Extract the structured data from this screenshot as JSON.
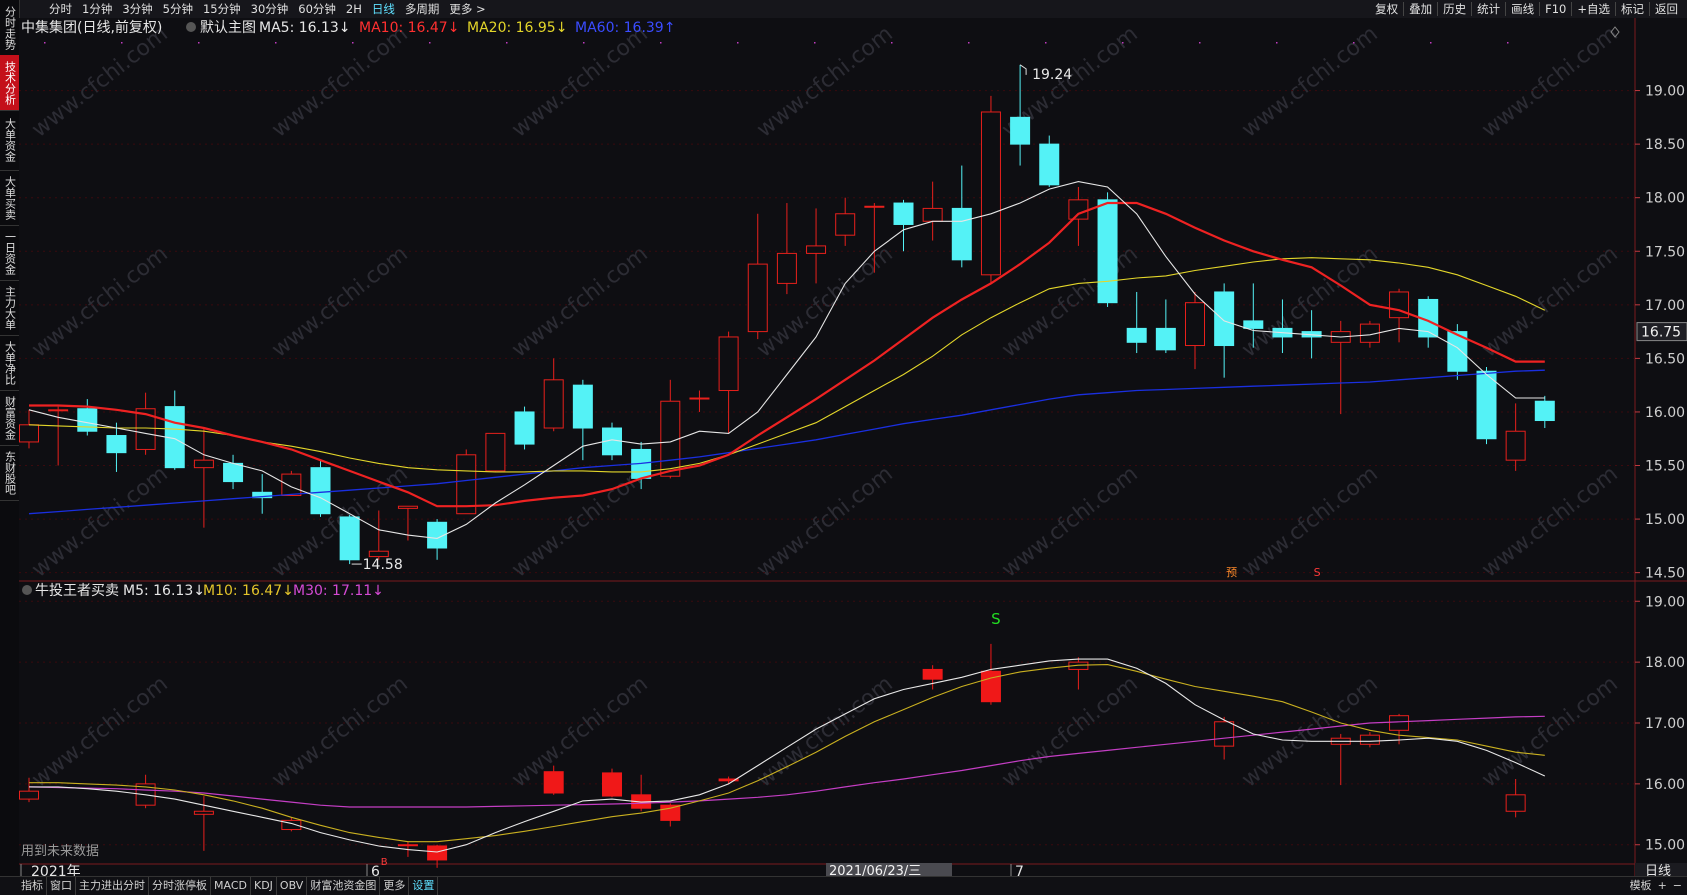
{
  "side_tabs": [
    "分时走势",
    "技术分析",
    "大单资金",
    "大单买卖",
    "一日资金",
    "主力大单",
    "大单净比",
    "财富资金",
    "东财股吧"
  ],
  "top_left_tabs": [
    "分时",
    "1分钟",
    "3分钟",
    "5分钟",
    "15分钟",
    "30分钟",
    "60分钟",
    "2H",
    "日线",
    "多周期",
    "更多 >"
  ],
  "top_right_tabs": [
    "复权",
    "叠加",
    "历史",
    "统计",
    "画线",
    "F10",
    "+自选",
    "标记",
    "返回"
  ],
  "bottom_tabs": [
    "指标",
    "窗口",
    "主力进出分时",
    "分时涨停板",
    "MACD",
    "KDJ",
    "OBV",
    "财富池资金图",
    "更多",
    "设置"
  ],
  "bottom_right": [
    "模板",
    "+",
    "−"
  ],
  "main_legend": {
    "title": "中集集团(日线,前复权)",
    "chart_name": "默认主图",
    "ma5": "MA5: 16.13↓",
    "ma10": "MA10: 16.47↓",
    "ma20": "MA20: 16.95↓",
    "ma60": "MA60: 16.39↑"
  },
  "sub_legend": {
    "title": "牛投王者买卖",
    "m5": "M5: 16.13↓",
    "m10": "M10: 16.47↓",
    "m30": "M30: 17.11↓"
  },
  "watermark": "www.cfchi.com",
  "future_note": "用到未来数据",
  "x_labels": [
    "2021年",
    "6",
    "7"
  ],
  "cursor_date": "2021/06/23/三",
  "period_label": "日线",
  "high_label": "19.24",
  "low_label": "14.58",
  "current_price": "16.75",
  "signal_labels": {
    "s_top": "S",
    "yu": "预",
    "s_small": "S",
    "b_small": "B"
  },
  "colors": {
    "up": "#e8201c",
    "down": "#54f2f6",
    "ma5": "#e6e6e6",
    "ma10": "#ee2222",
    "ma20": "#e3d62a",
    "ma60": "#1a2fe0",
    "m30": "#c43ec4",
    "bg": "#0e0e12",
    "grid": "#3a0a0e"
  },
  "chart_data": {
    "type": "candlestick",
    "main_yaxis": {
      "ticks": [
        "19.00",
        "18.50",
        "18.00",
        "17.50",
        "17.00",
        "16.50",
        "16.00",
        "15.50",
        "15.00",
        "14.50"
      ],
      "range": [
        14.45,
        19.5
      ]
    },
    "sub_yaxis": {
      "ticks": [
        "19.00",
        "18.00",
        "17.00",
        "16.00",
        "15.00"
      ],
      "range": [
        14.7,
        19.3
      ]
    },
    "candles": [
      {
        "o": 15.72,
        "c": 15.88,
        "h": 16.02,
        "l": 15.66
      },
      {
        "o": 16.02,
        "c": 16.02,
        "h": 16.05,
        "l": 15.5
      },
      {
        "o": 16.03,
        "c": 15.82,
        "h": 16.12,
        "l": 15.78
      },
      {
        "o": 15.78,
        "c": 15.62,
        "h": 15.9,
        "l": 15.44
      },
      {
        "o": 15.65,
        "c": 16.03,
        "h": 16.18,
        "l": 15.6
      },
      {
        "o": 16.05,
        "c": 15.48,
        "h": 16.2,
        "l": 15.46
      },
      {
        "o": 15.48,
        "c": 15.55,
        "h": 15.85,
        "l": 14.92
      },
      {
        "o": 15.52,
        "c": 15.35,
        "h": 15.6,
        "l": 15.28
      },
      {
        "o": 15.25,
        "c": 15.2,
        "h": 15.42,
        "l": 15.05
      },
      {
        "o": 15.22,
        "c": 15.42,
        "h": 15.45,
        "l": 15.22
      },
      {
        "o": 15.48,
        "c": 15.05,
        "h": 15.55,
        "l": 15.02
      },
      {
        "o": 15.02,
        "c": 14.62,
        "h": 15.04,
        "l": 14.58
      },
      {
        "o": 14.65,
        "c": 14.7,
        "h": 15.08,
        "l": 14.62
      },
      {
        "o": 15.1,
        "c": 15.12,
        "h": 15.12,
        "l": 14.8
      },
      {
        "o": 14.97,
        "c": 14.73,
        "h": 15.0,
        "l": 14.62
      },
      {
        "o": 15.05,
        "c": 15.6,
        "h": 15.65,
        "l": 15.05
      },
      {
        "o": 15.45,
        "c": 15.8,
        "h": 15.8,
        "l": 15.44
      },
      {
        "o": 16.0,
        "c": 15.7,
        "h": 16.05,
        "l": 15.65
      },
      {
        "o": 15.85,
        "c": 16.3,
        "h": 16.5,
        "l": 15.82
      },
      {
        "o": 16.25,
        "c": 15.85,
        "h": 16.3,
        "l": 15.55
      },
      {
        "o": 15.85,
        "c": 15.6,
        "h": 15.9,
        "l": 15.55
      },
      {
        "o": 15.65,
        "c": 15.38,
        "h": 15.72,
        "l": 15.28
      },
      {
        "o": 15.4,
        "c": 16.1,
        "h": 16.3,
        "l": 15.38
      },
      {
        "o": 16.13,
        "c": 16.13,
        "h": 16.2,
        "l": 16.0
      },
      {
        "o": 16.2,
        "c": 16.7,
        "h": 16.75,
        "l": 15.8
      },
      {
        "o": 16.75,
        "c": 17.38,
        "h": 17.85,
        "l": 16.68
      },
      {
        "o": 17.2,
        "c": 17.48,
        "h": 17.95,
        "l": 17.1
      },
      {
        "o": 17.48,
        "c": 17.55,
        "h": 17.9,
        "l": 17.2
      },
      {
        "o": 17.65,
        "c": 17.85,
        "h": 18.0,
        "l": 17.55
      },
      {
        "o": 17.92,
        "c": 17.92,
        "h": 17.95,
        "l": 17.3
      },
      {
        "o": 17.95,
        "c": 17.75,
        "h": 17.98,
        "l": 17.5
      },
      {
        "o": 17.78,
        "c": 17.9,
        "h": 18.15,
        "l": 17.6
      },
      {
        "o": 17.9,
        "c": 17.42,
        "h": 18.3,
        "l": 17.35
      },
      {
        "o": 17.28,
        "c": 18.8,
        "h": 18.95,
        "l": 17.2
      },
      {
        "o": 18.75,
        "c": 18.5,
        "h": 19.24,
        "l": 18.3
      },
      {
        "o": 18.5,
        "c": 18.12,
        "h": 18.58,
        "l": 18.1
      },
      {
        "o": 17.8,
        "c": 17.98,
        "h": 18.1,
        "l": 17.55
      },
      {
        "o": 17.98,
        "c": 17.02,
        "h": 18.05,
        "l": 16.98
      },
      {
        "o": 16.78,
        "c": 16.65,
        "h": 17.12,
        "l": 16.55
      },
      {
        "o": 16.78,
        "c": 16.58,
        "h": 17.05,
        "l": 16.55
      },
      {
        "o": 16.62,
        "c": 17.02,
        "h": 17.12,
        "l": 16.4
      },
      {
        "o": 17.12,
        "c": 16.62,
        "h": 17.2,
        "l": 16.32
      },
      {
        "o": 16.85,
        "c": 16.78,
        "h": 17.2,
        "l": 16.6
      },
      {
        "o": 16.78,
        "c": 16.7,
        "h": 17.05,
        "l": 16.55
      },
      {
        "o": 16.75,
        "c": 16.7,
        "h": 16.95,
        "l": 16.5
      },
      {
        "o": 16.65,
        "c": 16.75,
        "h": 16.85,
        "l": 15.98
      },
      {
        "o": 16.65,
        "c": 16.82,
        "h": 16.85,
        "l": 16.6
      },
      {
        "o": 16.88,
        "c": 17.12,
        "h": 17.15,
        "l": 16.65
      },
      {
        "o": 17.05,
        "c": 16.7,
        "h": 17.08,
        "l": 16.6
      },
      {
        "o": 16.75,
        "c": 16.38,
        "h": 16.82,
        "l": 16.3
      },
      {
        "o": 16.38,
        "c": 15.75,
        "h": 16.42,
        "l": 15.7
      },
      {
        "o": 15.55,
        "c": 15.82,
        "h": 16.08,
        "l": 15.45
      },
      {
        "o": 16.1,
        "c": 15.92,
        "h": 16.15,
        "l": 15.85
      }
    ],
    "ma5": [
      16.02,
      15.95,
      15.9,
      15.85,
      15.8,
      15.75,
      15.6,
      15.52,
      15.45,
      15.3,
      15.2,
      15.05,
      14.9,
      14.85,
      14.82,
      14.95,
      15.15,
      15.32,
      15.5,
      15.68,
      15.74,
      15.7,
      15.72,
      15.82,
      15.8,
      16.0,
      16.35,
      16.7,
      17.2,
      17.5,
      17.7,
      17.78,
      17.78,
      17.85,
      17.95,
      18.08,
      18.15,
      18.1,
      17.85,
      17.45,
      17.1,
      16.85,
      16.76,
      16.74,
      16.72,
      16.7,
      16.72,
      16.78,
      16.75,
      16.6,
      16.35,
      16.13,
      16.13
    ],
    "ma10": [
      16.06,
      16.06,
      16.05,
      16.02,
      15.98,
      15.9,
      15.85,
      15.78,
      15.72,
      15.65,
      15.55,
      15.45,
      15.35,
      15.25,
      15.12,
      15.12,
      15.13,
      15.17,
      15.2,
      15.22,
      15.28,
      15.38,
      15.45,
      15.5,
      15.6,
      15.78,
      15.95,
      16.12,
      16.3,
      16.48,
      16.68,
      16.88,
      17.05,
      17.2,
      17.38,
      17.58,
      17.85,
      17.95,
      17.95,
      17.85,
      17.72,
      17.6,
      17.5,
      17.42,
      17.35,
      17.18,
      17.0,
      16.95,
      16.85,
      16.72,
      16.6,
      16.47,
      16.47
    ],
    "ma20": [
      15.88,
      15.87,
      15.86,
      15.85,
      15.85,
      15.84,
      15.82,
      15.78,
      15.72,
      15.68,
      15.63,
      15.57,
      15.52,
      15.48,
      15.46,
      15.45,
      15.44,
      15.44,
      15.45,
      15.45,
      15.44,
      15.44,
      15.47,
      15.52,
      15.6,
      15.7,
      15.8,
      15.9,
      16.05,
      16.2,
      16.35,
      16.52,
      16.72,
      16.88,
      17.02,
      17.15,
      17.2,
      17.22,
      17.25,
      17.27,
      17.32,
      17.36,
      17.4,
      17.43,
      17.44,
      17.43,
      17.42,
      17.39,
      17.35,
      17.28,
      17.18,
      17.08,
      16.95
    ],
    "ma60": [
      15.05,
      15.07,
      15.09,
      15.11,
      15.13,
      15.15,
      15.17,
      15.19,
      15.21,
      15.23,
      15.25,
      15.27,
      15.29,
      15.31,
      15.33,
      15.36,
      15.39,
      15.42,
      15.45,
      15.48,
      15.5,
      15.52,
      15.55,
      15.58,
      15.62,
      15.66,
      15.7,
      15.74,
      15.79,
      15.84,
      15.89,
      15.93,
      15.97,
      16.02,
      16.07,
      16.12,
      16.16,
      16.18,
      16.2,
      16.21,
      16.22,
      16.23,
      16.24,
      16.25,
      16.26,
      16.27,
      16.28,
      16.3,
      16.32,
      16.34,
      16.36,
      16.38,
      16.39
    ],
    "sub_m5": [
      15.95,
      15.95,
      15.92,
      15.88,
      15.82,
      15.75,
      15.65,
      15.55,
      15.45,
      15.35,
      15.2,
      15.08,
      14.98,
      14.92,
      14.88,
      15.0,
      15.2,
      15.38,
      15.55,
      15.72,
      15.75,
      15.7,
      15.72,
      15.82,
      16.0,
      16.3,
      16.6,
      16.9,
      17.15,
      17.4,
      17.55,
      17.65,
      17.75,
      17.88,
      17.95,
      18.02,
      18.05,
      18.05,
      17.9,
      17.65,
      17.3,
      17.05,
      16.82,
      16.72,
      16.7,
      16.7,
      16.7,
      16.72,
      16.75,
      16.7,
      16.55,
      16.35,
      16.13
    ],
    "sub_m10": [
      16.02,
      16.02,
      16.0,
      15.98,
      15.95,
      15.9,
      15.82,
      15.72,
      15.6,
      15.45,
      15.32,
      15.2,
      15.12,
      15.05,
      15.05,
      15.1,
      15.15,
      15.22,
      15.3,
      15.38,
      15.46,
      15.52,
      15.6,
      15.72,
      15.85,
      16.05,
      16.28,
      16.52,
      16.78,
      17.02,
      17.22,
      17.42,
      17.6,
      17.74,
      17.84,
      17.9,
      17.95,
      17.96,
      17.85,
      17.72,
      17.6,
      17.52,
      17.44,
      17.35,
      17.18,
      17.0,
      16.88,
      16.8,
      16.76,
      16.72,
      16.62,
      16.52,
      16.47
    ],
    "sub_m30": [
      15.95,
      15.94,
      15.93,
      15.92,
      15.9,
      15.88,
      15.85,
      15.8,
      15.75,
      15.7,
      15.65,
      15.62,
      15.62,
      15.62,
      15.62,
      15.62,
      15.63,
      15.64,
      15.65,
      15.66,
      15.67,
      15.68,
      15.7,
      15.72,
      15.75,
      15.78,
      15.82,
      15.88,
      15.95,
      16.02,
      16.08,
      16.15,
      16.22,
      16.3,
      16.38,
      16.45,
      16.5,
      16.55,
      16.6,
      16.65,
      16.7,
      16.75,
      16.8,
      16.85,
      16.9,
      16.95,
      17.0,
      17.02,
      17.04,
      17.06,
      17.08,
      17.1,
      17.11
    ],
    "sub_markers": [
      {
        "i": 0,
        "o": 15.75,
        "c": 15.88,
        "h": 16.1,
        "l": 15.7,
        "kind": "cyan"
      },
      {
        "i": 4,
        "o": 15.65,
        "c": 16.0,
        "h": 16.15,
        "l": 15.6,
        "kind": "cyan"
      },
      {
        "i": 6,
        "o": 15.5,
        "c": 15.55,
        "h": 15.8,
        "l": 14.9,
        "kind": "cyan"
      },
      {
        "i": 9,
        "o": 15.25,
        "c": 15.4,
        "h": 15.45,
        "l": 15.22,
        "kind": "cyan"
      },
      {
        "i": 13,
        "o": 15.0,
        "c": 15.0,
        "h": 15.05,
        "l": 14.8,
        "kind": "red"
      },
      {
        "i": 14,
        "o": 14.98,
        "c": 14.75,
        "h": 15.0,
        "l": 14.62,
        "kind": "red"
      },
      {
        "i": 18,
        "o": 15.85,
        "c": 16.2,
        "h": 16.3,
        "l": 15.82,
        "kind": "red"
      },
      {
        "i": 20,
        "o": 16.18,
        "c": 15.8,
        "h": 16.25,
        "l": 15.78,
        "kind": "red"
      },
      {
        "i": 21,
        "o": 15.82,
        "c": 15.6,
        "h": 16.15,
        "l": 15.55,
        "kind": "red"
      },
      {
        "i": 22,
        "o": 15.65,
        "c": 15.4,
        "h": 15.68,
        "l": 15.3,
        "kind": "red"
      },
      {
        "i": 24,
        "o": 16.05,
        "c": 16.08,
        "h": 16.12,
        "l": 16.0,
        "kind": "red"
      },
      {
        "i": 31,
        "o": 17.88,
        "c": 17.72,
        "h": 17.95,
        "l": 17.55,
        "kind": "red"
      },
      {
        "i": 33,
        "o": 17.85,
        "c": 17.35,
        "h": 18.3,
        "l": 17.3,
        "kind": "red"
      },
      {
        "i": 36,
        "o": 17.88,
        "c": 18.0,
        "h": 18.08,
        "l": 17.55,
        "kind": "cyan"
      },
      {
        "i": 41,
        "o": 16.62,
        "c": 17.02,
        "h": 17.1,
        "l": 16.4,
        "kind": "cyan"
      },
      {
        "i": 45,
        "o": 16.65,
        "c": 16.75,
        "h": 16.82,
        "l": 15.98,
        "kind": "cyan"
      },
      {
        "i": 46,
        "o": 16.65,
        "c": 16.8,
        "h": 16.85,
        "l": 16.6,
        "kind": "cyan"
      },
      {
        "i": 47,
        "o": 16.88,
        "c": 17.12,
        "h": 17.15,
        "l": 16.65,
        "kind": "cyan"
      },
      {
        "i": 51,
        "o": 15.55,
        "c": 15.82,
        "h": 16.08,
        "l": 15.45,
        "kind": "cyan"
      }
    ]
  }
}
